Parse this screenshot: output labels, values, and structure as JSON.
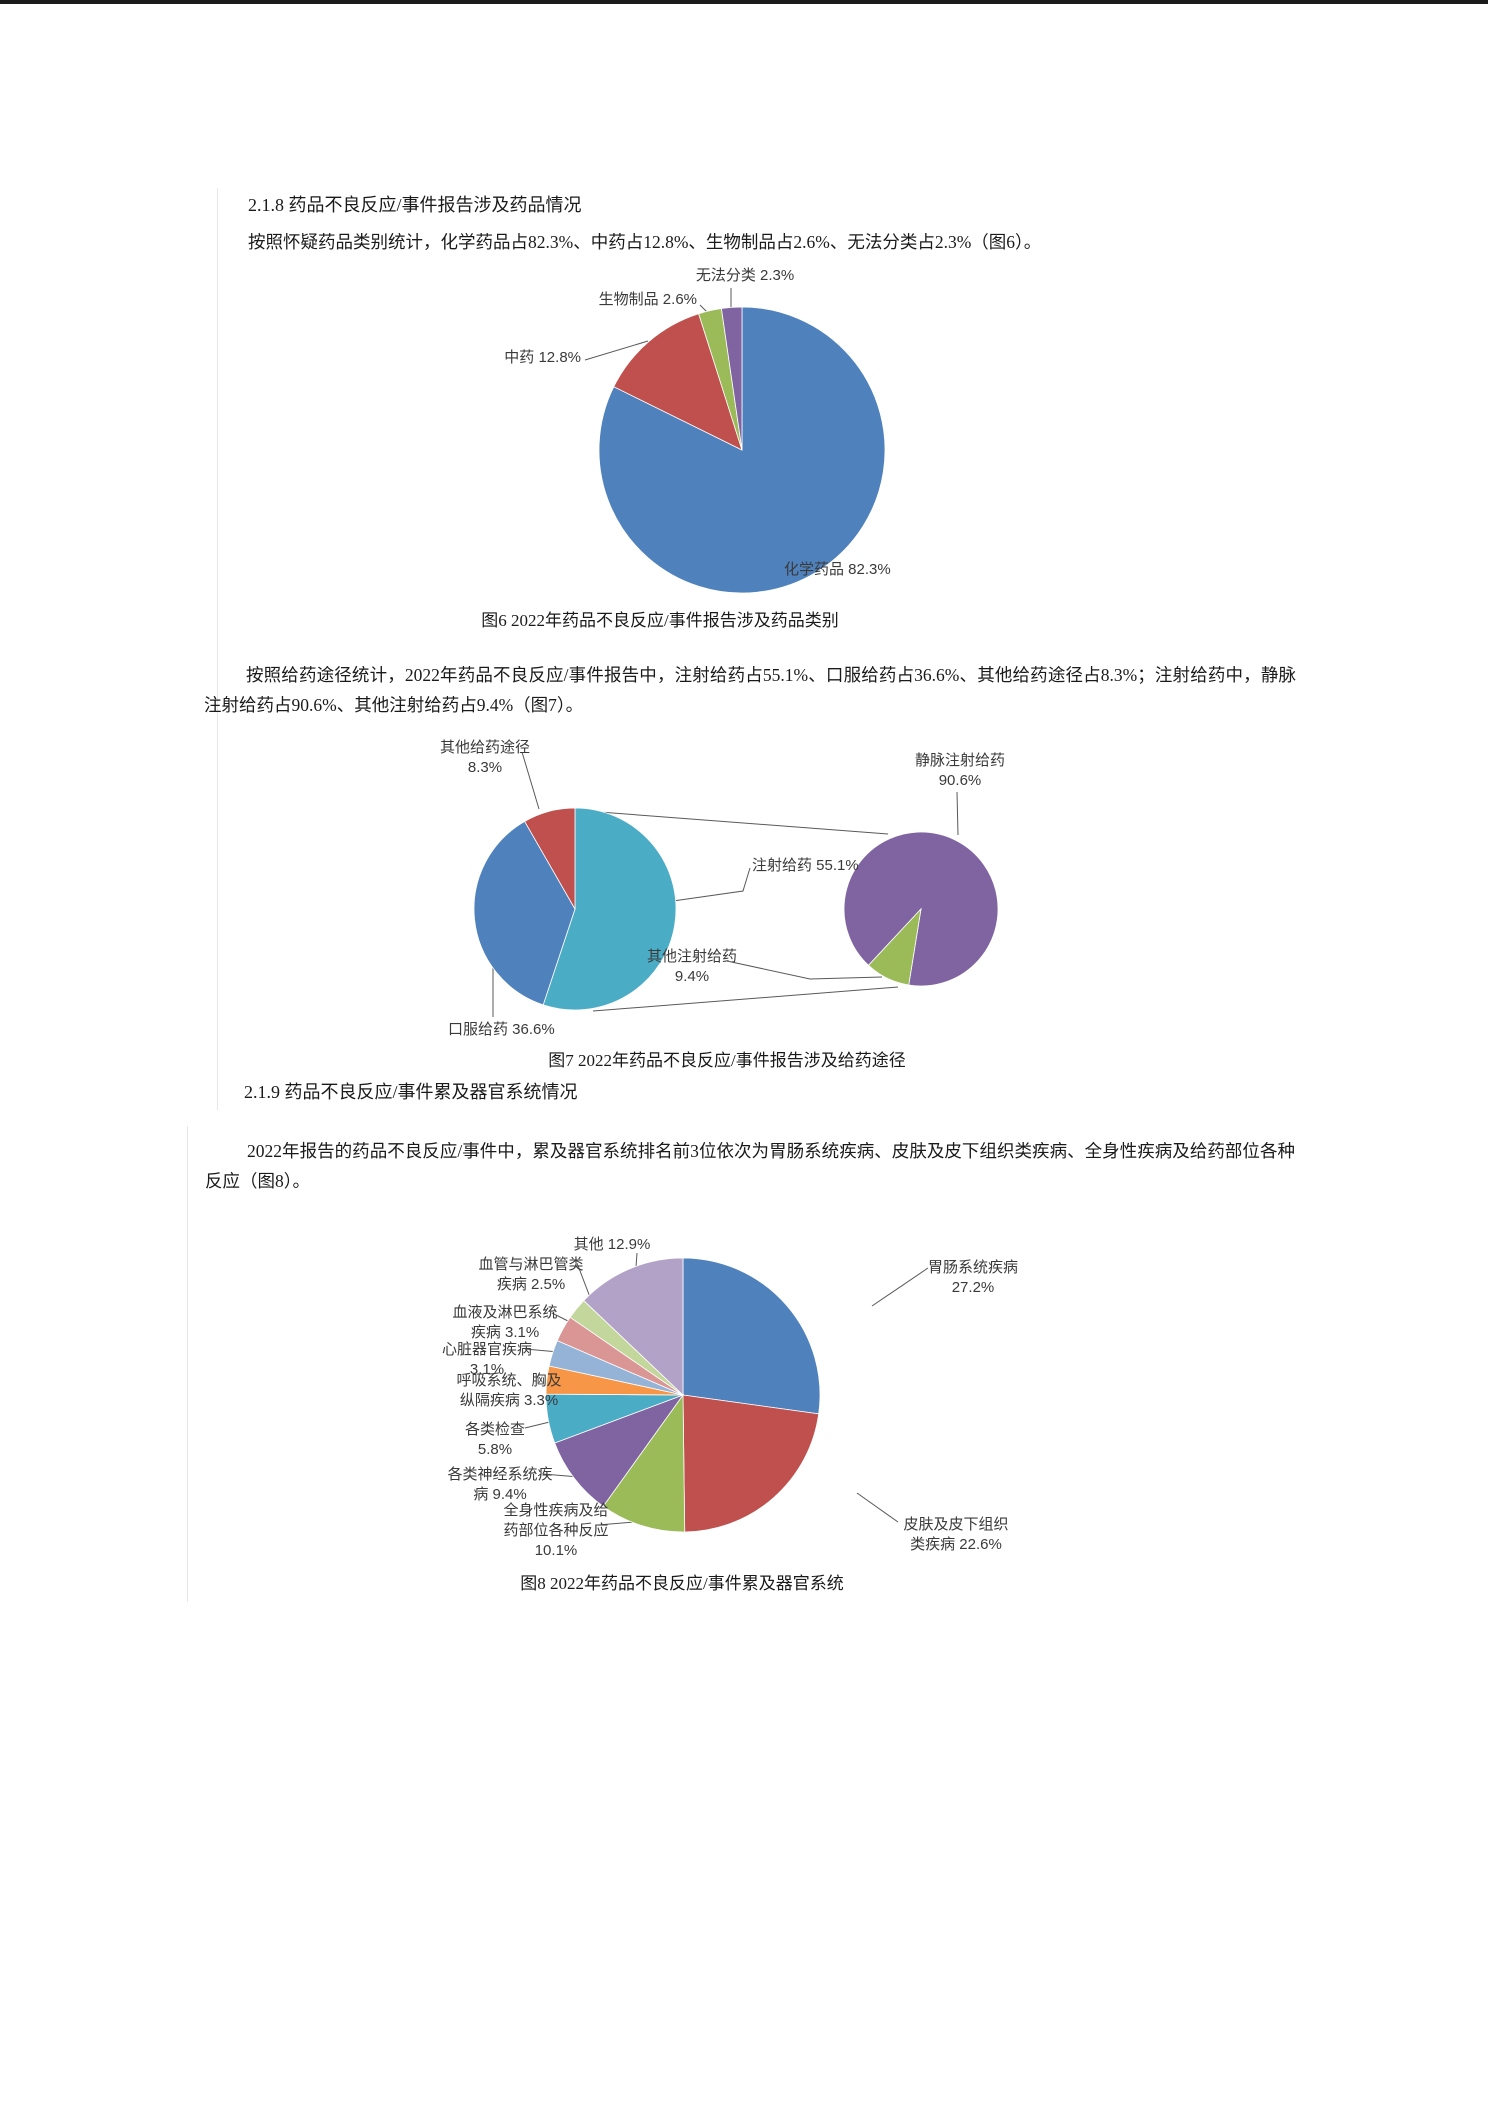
{
  "page": {
    "top_bar_color": "#1b1b1b"
  },
  "doc": {
    "heading_218": "2.1.8 药品不良反应/事件报告涉及药品情况",
    "para_drug_category": "按照怀疑药品类别统计，化学药品占82.3%、中药占12.8%、生物制品占2.6%、无法分类占2.3%（图6）。",
    "caption_fig6": "图6 2022年药品不良反应/事件报告涉及药品类别",
    "para_route": "按照给药途径统计，2022年药品不良反应/事件报告中，注射给药占55.1%、口服给药占36.6%、其他给药途径占8.3%；注射给药中，静脉注射给药占90.6%、其他注射给药占9.4%（图7）。",
    "caption_fig7": "图7 2022年药品不良反应/事件报告涉及给药途径",
    "heading_219": "2.1.9 药品不良反应/事件累及器官系统情况",
    "para_organ": "2022年报告的药品不良反应/事件中，累及器官系统排名前3位依次为胃肠系统疾病、皮肤及皮下组织类疾病、全身性疾病及给药部位各种反应（图8）。",
    "caption_fig8": "图8 2022年药品不良反应/事件累及器官系统"
  },
  "chart_data": [
    {
      "id": "fig6",
      "type": "pie",
      "title": "图6 2022年药品不良反应/事件报告涉及药品类别",
      "unit": "%",
      "legend_position": "callouts",
      "slices": [
        {
          "label": "化学药品",
          "pct": 82.3,
          "color": "#4F81BD",
          "callout": "化学药品 82.3%"
        },
        {
          "label": "中药",
          "pct": 12.8,
          "color": "#C0504D",
          "callout": "中药 12.8%"
        },
        {
          "label": "生物制品",
          "pct": 2.6,
          "color": "#9BBB59",
          "callout": "生物制品 2.6%"
        },
        {
          "label": "无法分类",
          "pct": 2.3,
          "color": "#8064A2",
          "callout": "无法分类 2.3%"
        }
      ]
    },
    {
      "id": "fig7",
      "type": "pie-of-pie",
      "title": "图7 2022年药品不良反应/事件报告涉及给药途径",
      "unit": "%",
      "legend_position": "callouts",
      "slices": [
        {
          "label": "注射给药",
          "pct": 55.1,
          "color": "#4BACC6",
          "callout": "注射给药 55.1%"
        },
        {
          "label": "口服给药",
          "pct": 36.6,
          "color": "#4F81BD",
          "callout": "口服给药 36.6%"
        },
        {
          "label": "其他给药途径",
          "pct": 8.3,
          "color": "#C0504D",
          "callout": "其他给药途径\n8.3%"
        }
      ],
      "secondary_slices": [
        {
          "label": "静脉注射给药",
          "pct": 90.6,
          "color": "#8064A2",
          "callout": "静脉注射给药\n90.6%"
        },
        {
          "label": "其他注射给药",
          "pct": 9.4,
          "color": "#9BBB59",
          "callout": "其他注射给药\n9.4%"
        }
      ]
    },
    {
      "id": "fig8",
      "type": "pie",
      "title": "图8 2022年药品不良反应/事件累及器官系统",
      "unit": "%",
      "legend_position": "callouts",
      "slices": [
        {
          "label": "胃肠系统疾病",
          "pct": 27.2,
          "color": "#4F81BD",
          "callout": "胃肠系统疾病\n27.2%"
        },
        {
          "label": "皮肤及皮下组织类疾病",
          "pct": 22.6,
          "color": "#C0504D",
          "callout": "皮肤及皮下组织\n类疾病 22.6%"
        },
        {
          "label": "全身性疾病及给药部位各种反应",
          "pct": 10.1,
          "color": "#9BBB59",
          "callout": "全身性疾病及给\n药部位各种反应\n10.1%"
        },
        {
          "label": "各类神经系统疾病",
          "pct": 9.4,
          "color": "#8064A2",
          "callout": "各类神经系统疾\n病 9.4%"
        },
        {
          "label": "各类检查",
          "pct": 5.8,
          "color": "#4BACC6",
          "callout": "各类检查\n5.8%"
        },
        {
          "label": "呼吸系统、胸及纵隔疾病",
          "pct": 3.3,
          "color": "#F79646",
          "callout": "呼吸系统、胸及\n纵隔疾病 3.3%"
        },
        {
          "label": "心脏器官疾病",
          "pct": 3.1,
          "color": "#95B3D7",
          "callout": "心脏器官疾病\n3.1%"
        },
        {
          "label": "血液及淋巴系统疾病",
          "pct": 3.1,
          "color": "#D99694",
          "callout": "血液及淋巴系统\n疾病 3.1%"
        },
        {
          "label": "血管与淋巴管类疾病",
          "pct": 2.5,
          "color": "#C3D69B",
          "callout": "血管与淋巴管类\n疾病 2.5%"
        },
        {
          "label": "其他",
          "pct": 12.9,
          "color": "#B3A2C7",
          "callout": "其他 12.9%"
        }
      ]
    }
  ]
}
